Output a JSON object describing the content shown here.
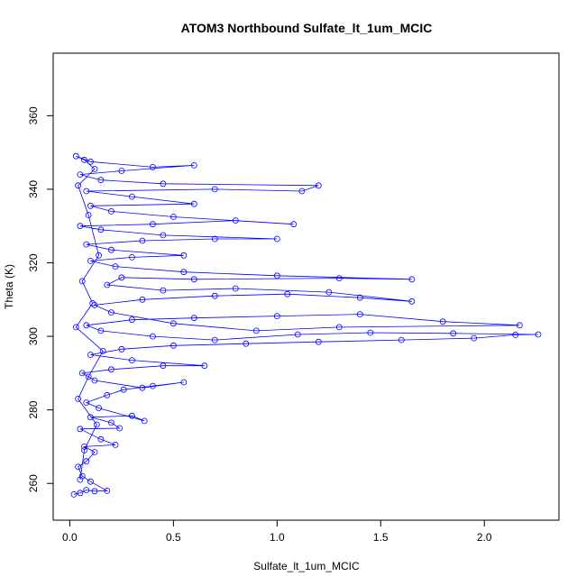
{
  "chart_data": {
    "type": "scatter",
    "title": "ATOM3 Northbound Sulfate_lt_1um_MCIC",
    "xlabel": "Sulfate_lt_1um_MCIC",
    "ylabel": "Theta (K)",
    "xlim": [
      -0.08,
      2.36
    ],
    "ylim": [
      250,
      377
    ],
    "xticks": [
      0.0,
      0.5,
      1.0,
      1.5,
      2.0
    ],
    "xtick_labels": [
      "0.0",
      "0.5",
      "1.0",
      "1.5",
      "2.0"
    ],
    "yticks": [
      260,
      280,
      300,
      320,
      340,
      360
    ],
    "ytick_labels": [
      "260",
      "280",
      "300",
      "320",
      "340",
      "360"
    ],
    "grid": false,
    "series": [
      {
        "color": "#0000ff",
        "marker": "circle-open",
        "style": "points-and-lines",
        "points": [
          [
            0.02,
            257.0
          ],
          [
            0.05,
            257.4
          ],
          [
            0.08,
            258.2
          ],
          [
            0.12,
            257.9
          ],
          [
            0.18,
            258.0
          ],
          [
            0.1,
            260.5
          ],
          [
            0.06,
            262.0
          ],
          [
            0.04,
            264.5
          ],
          [
            0.08,
            266.0
          ],
          [
            0.12,
            268.5
          ],
          [
            0.07,
            270.0
          ],
          [
            0.22,
            270.5
          ],
          [
            0.15,
            272.0
          ],
          [
            0.05,
            274.8
          ],
          [
            0.24,
            275.0
          ],
          [
            0.2,
            276.5
          ],
          [
            0.1,
            278.0
          ],
          [
            0.3,
            278.4
          ],
          [
            0.36,
            277.0
          ],
          [
            0.14,
            280.5
          ],
          [
            0.08,
            282.0
          ],
          [
            0.18,
            284.0
          ],
          [
            0.26,
            285.5
          ],
          [
            0.4,
            286.5
          ],
          [
            0.55,
            287.5
          ],
          [
            0.35,
            286.0
          ],
          [
            0.12,
            288.0
          ],
          [
            0.06,
            290.0
          ],
          [
            0.2,
            291.0
          ],
          [
            0.45,
            292.0
          ],
          [
            0.65,
            292.0
          ],
          [
            0.3,
            293.5
          ],
          [
            0.1,
            295.0
          ],
          [
            0.25,
            296.5
          ],
          [
            0.5,
            297.5
          ],
          [
            0.85,
            298.0
          ],
          [
            1.2,
            298.5
          ],
          [
            1.6,
            299.0
          ],
          [
            1.95,
            299.5
          ],
          [
            2.15,
            300.4
          ],
          [
            2.26,
            300.5
          ],
          [
            1.85,
            300.8
          ],
          [
            1.45,
            301.0
          ],
          [
            1.1,
            300.5
          ],
          [
            0.7,
            299.0
          ],
          [
            0.4,
            300.0
          ],
          [
            0.15,
            301.5
          ],
          [
            0.08,
            303.0
          ],
          [
            0.3,
            304.5
          ],
          [
            0.6,
            305.0
          ],
          [
            1.0,
            305.5
          ],
          [
            1.4,
            306.0
          ],
          [
            1.8,
            304.0
          ],
          [
            2.17,
            303.0
          ],
          [
            1.3,
            302.5
          ],
          [
            0.9,
            301.5
          ],
          [
            0.5,
            303.5
          ],
          [
            0.2,
            306.5
          ],
          [
            0.12,
            308.5
          ],
          [
            0.35,
            310.0
          ],
          [
            0.7,
            311.0
          ],
          [
            1.05,
            311.5
          ],
          [
            1.4,
            310.5
          ],
          [
            1.65,
            309.5
          ],
          [
            1.25,
            312.0
          ],
          [
            0.8,
            313.0
          ],
          [
            0.45,
            312.5
          ],
          [
            0.18,
            314.0
          ],
          [
            0.25,
            316.0
          ],
          [
            0.6,
            315.5
          ],
          [
            1.3,
            315.8
          ],
          [
            1.65,
            315.5
          ],
          [
            1.0,
            316.5
          ],
          [
            0.55,
            317.5
          ],
          [
            0.22,
            319.0
          ],
          [
            0.1,
            320.5
          ],
          [
            0.3,
            321.5
          ],
          [
            0.55,
            322.0
          ],
          [
            0.2,
            323.5
          ],
          [
            0.08,
            325.0
          ],
          [
            0.35,
            326.0
          ],
          [
            0.7,
            326.5
          ],
          [
            1.0,
            326.5
          ],
          [
            0.45,
            327.5
          ],
          [
            0.15,
            329.0
          ],
          [
            0.05,
            330.0
          ],
          [
            0.4,
            330.5
          ],
          [
            0.8,
            331.5
          ],
          [
            1.08,
            330.5
          ],
          [
            0.5,
            332.5
          ],
          [
            0.2,
            334.0
          ],
          [
            0.1,
            335.5
          ],
          [
            0.6,
            336.0
          ],
          [
            0.3,
            338.0
          ],
          [
            0.08,
            339.5
          ],
          [
            0.7,
            340.0
          ],
          [
            1.12,
            339.5
          ],
          [
            1.2,
            341.0
          ],
          [
            0.45,
            341.5
          ],
          [
            0.15,
            342.5
          ],
          [
            0.05,
            344.0
          ],
          [
            0.25,
            345.0
          ],
          [
            0.6,
            346.5
          ],
          [
            0.4,
            346.0
          ],
          [
            0.1,
            347.5
          ],
          [
            0.03,
            349.0
          ],
          [
            0.07,
            348.0
          ],
          [
            0.12,
            345.5
          ],
          [
            0.04,
            341.0
          ],
          [
            0.09,
            333.0
          ],
          [
            0.14,
            322.0
          ],
          [
            0.06,
            315.0
          ],
          [
            0.11,
            309.0
          ],
          [
            0.03,
            302.5
          ],
          [
            0.16,
            296.0
          ],
          [
            0.09,
            289.0
          ],
          [
            0.04,
            283.0
          ],
          [
            0.13,
            276.0
          ],
          [
            0.07,
            269.0
          ],
          [
            0.05,
            261.0
          ]
        ]
      }
    ]
  }
}
